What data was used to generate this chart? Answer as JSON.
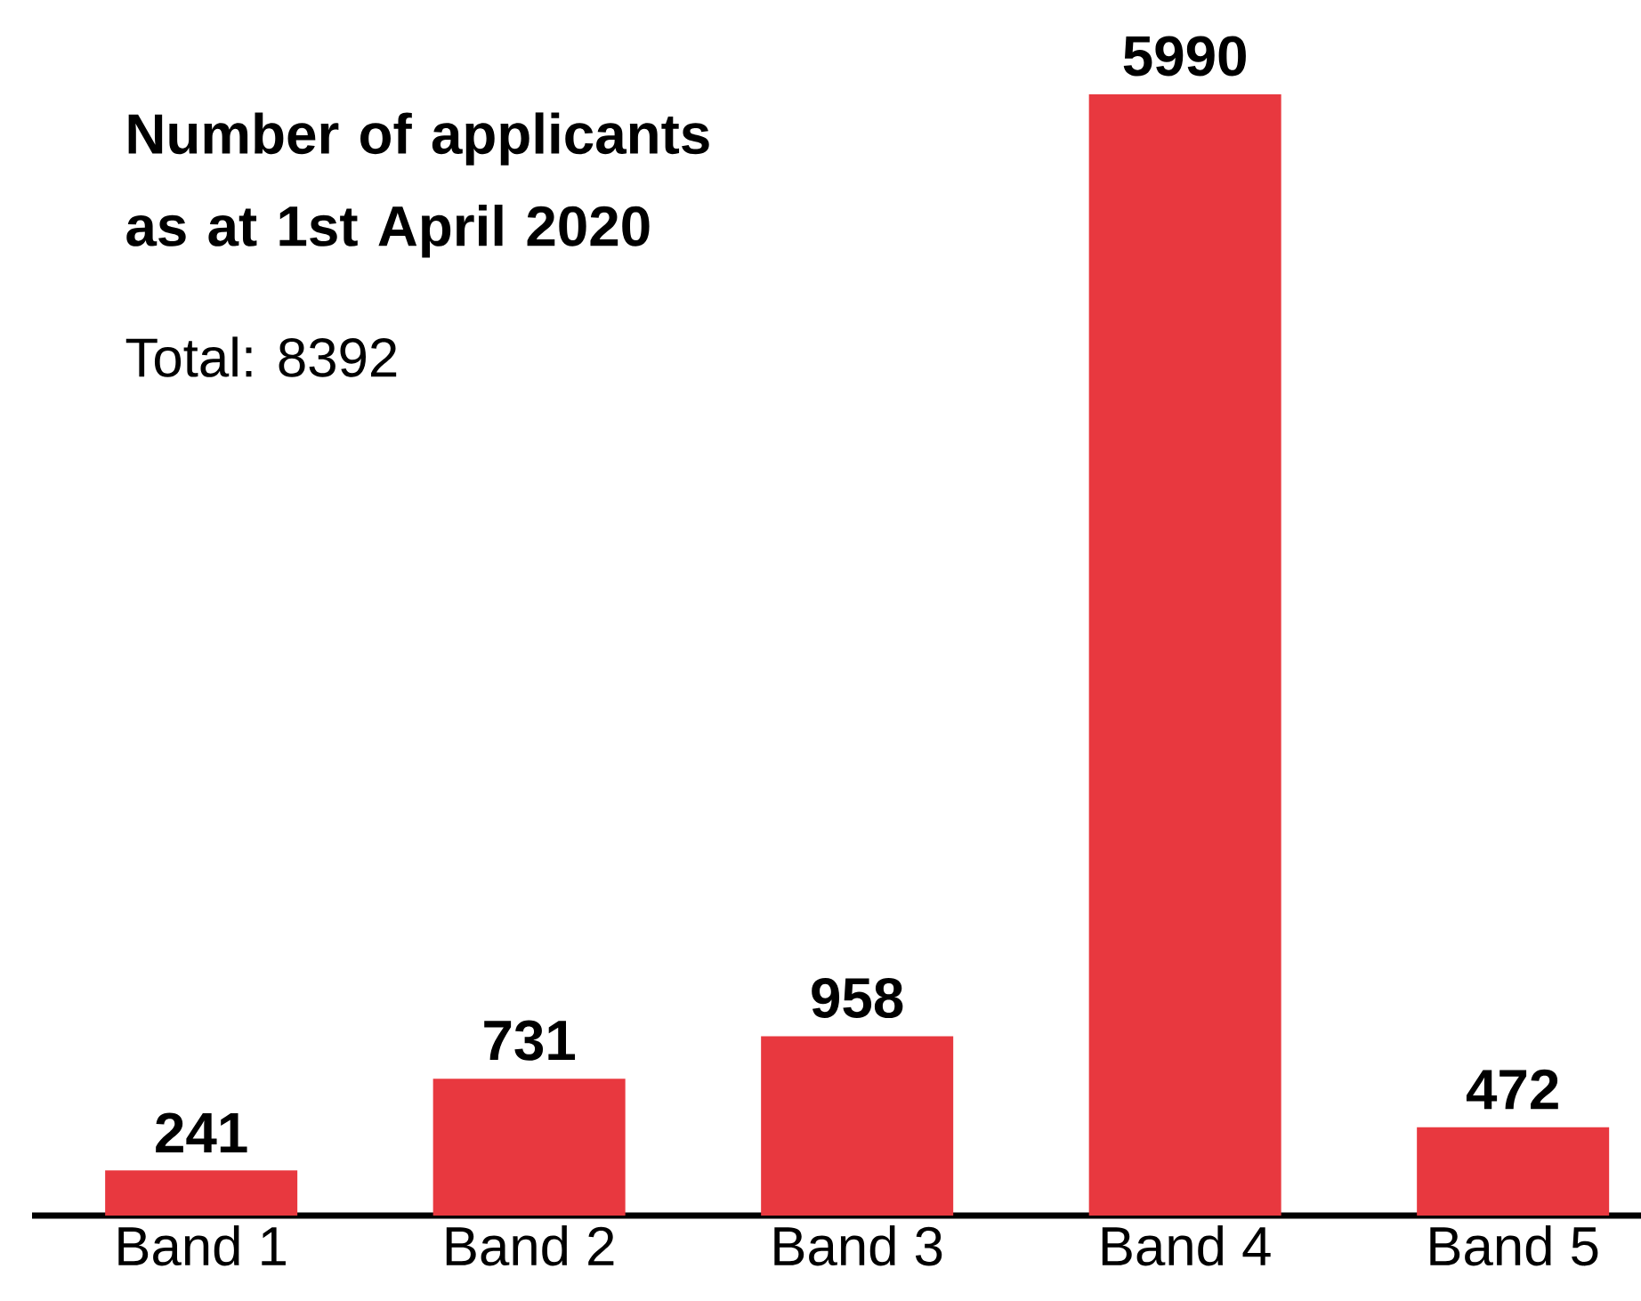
{
  "chart_data": {
    "type": "bar",
    "title": "Number of applicants as at 1st April 2020",
    "annotations": [
      "Total: 8392"
    ],
    "categories": [
      "Band 1",
      "Band 2",
      "Band 3",
      "Band 4",
      "Band 5"
    ],
    "values": [
      241,
      731,
      958,
      5990,
      472
    ],
    "color": "#e8383f",
    "data_labels": true
  }
}
